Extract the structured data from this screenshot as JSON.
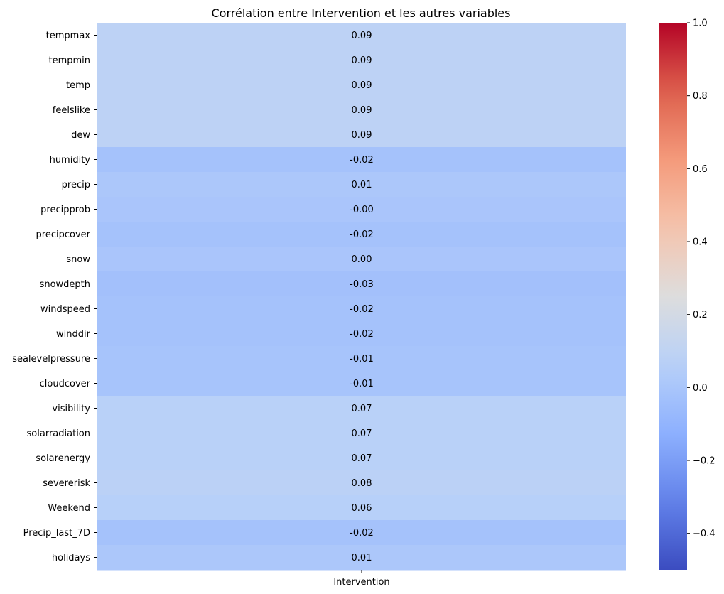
{
  "chart_data": {
    "type": "heatmap",
    "title": "Corrélation entre Intervention et les autres variables",
    "columns": [
      "Intervention"
    ],
    "rows": [
      "tempmax",
      "tempmin",
      "temp",
      "feelslike",
      "dew",
      "humidity",
      "precip",
      "precipprob",
      "precipcover",
      "snow",
      "snowdepth",
      "windspeed",
      "winddir",
      "sealevelpressure",
      "cloudcover",
      "visibility",
      "solarradiation",
      "solarenergy",
      "severerisk",
      "Weekend",
      "Precip_last_7D",
      "holidays"
    ],
    "values": [
      0.09,
      0.09,
      0.09,
      0.09,
      0.09,
      -0.02,
      0.01,
      -0.0,
      -0.02,
      0.0,
      -0.03,
      -0.02,
      -0.02,
      -0.01,
      -0.01,
      0.07,
      0.07,
      0.07,
      0.08,
      0.06,
      -0.02,
      0.01
    ],
    "value_labels": [
      "0.09",
      "0.09",
      "0.09",
      "0.09",
      "0.09",
      "-0.02",
      "0.01",
      "-0.00",
      "-0.02",
      "0.00",
      "-0.03",
      "-0.02",
      "-0.02",
      "-0.01",
      "-0.01",
      "0.07",
      "0.07",
      "0.07",
      "0.08",
      "0.06",
      "-0.02",
      "0.01"
    ],
    "colormap": "coolwarm",
    "colorbar": {
      "vmin": -0.5,
      "vmax": 1.0,
      "ticks": [
        1.0,
        0.8,
        0.6,
        0.4,
        0.2,
        0.0,
        -0.2,
        -0.4
      ],
      "tick_labels": [
        "1.0",
        "0.8",
        "0.6",
        "0.4",
        "0.2",
        "0.0",
        "−0.2",
        "−0.4"
      ]
    }
  }
}
